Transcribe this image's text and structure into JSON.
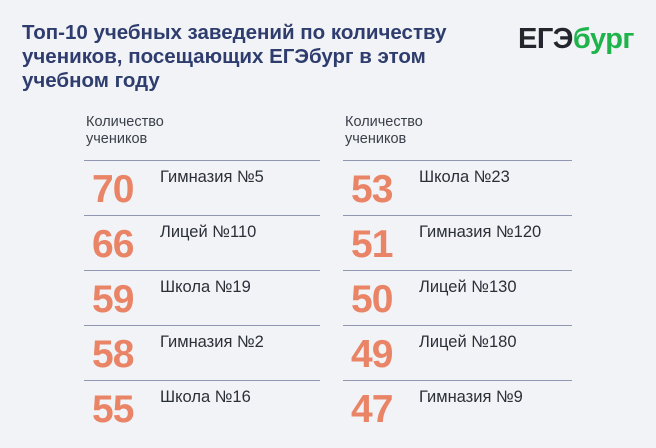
{
  "title": "Топ-10 учебных заведений по количеству учеников, посещающих ЕГЭбург в этом учебном году",
  "logo": {
    "part1": "ЕГЭ",
    "part2": "бург",
    "color_dark": "#23262d",
    "color_green": "#1fb34c"
  },
  "colors": {
    "title": "#2e3d6e",
    "number": "#e98466",
    "divider": "#8f98b0",
    "background": "#f2f3f6"
  },
  "chart_data": {
    "type": "table",
    "columns": [
      {
        "header": "Количество учеников",
        "rows": [
          {
            "value": 70,
            "name": "Гимназия №5"
          },
          {
            "value": 66,
            "name": "Лицей №110"
          },
          {
            "value": 59,
            "name": "Школа №19"
          },
          {
            "value": 58,
            "name": "Гимназия №2"
          },
          {
            "value": 55,
            "name": "Школа №16"
          }
        ]
      },
      {
        "header": "Количество учеников",
        "rows": [
          {
            "value": 53,
            "name": "Школа №23"
          },
          {
            "value": 51,
            "name": "Гимназия №120"
          },
          {
            "value": 50,
            "name": "Лицей №130"
          },
          {
            "value": 49,
            "name": "Лицей №180"
          },
          {
            "value": 47,
            "name": "Гимназия №9"
          }
        ]
      }
    ]
  }
}
